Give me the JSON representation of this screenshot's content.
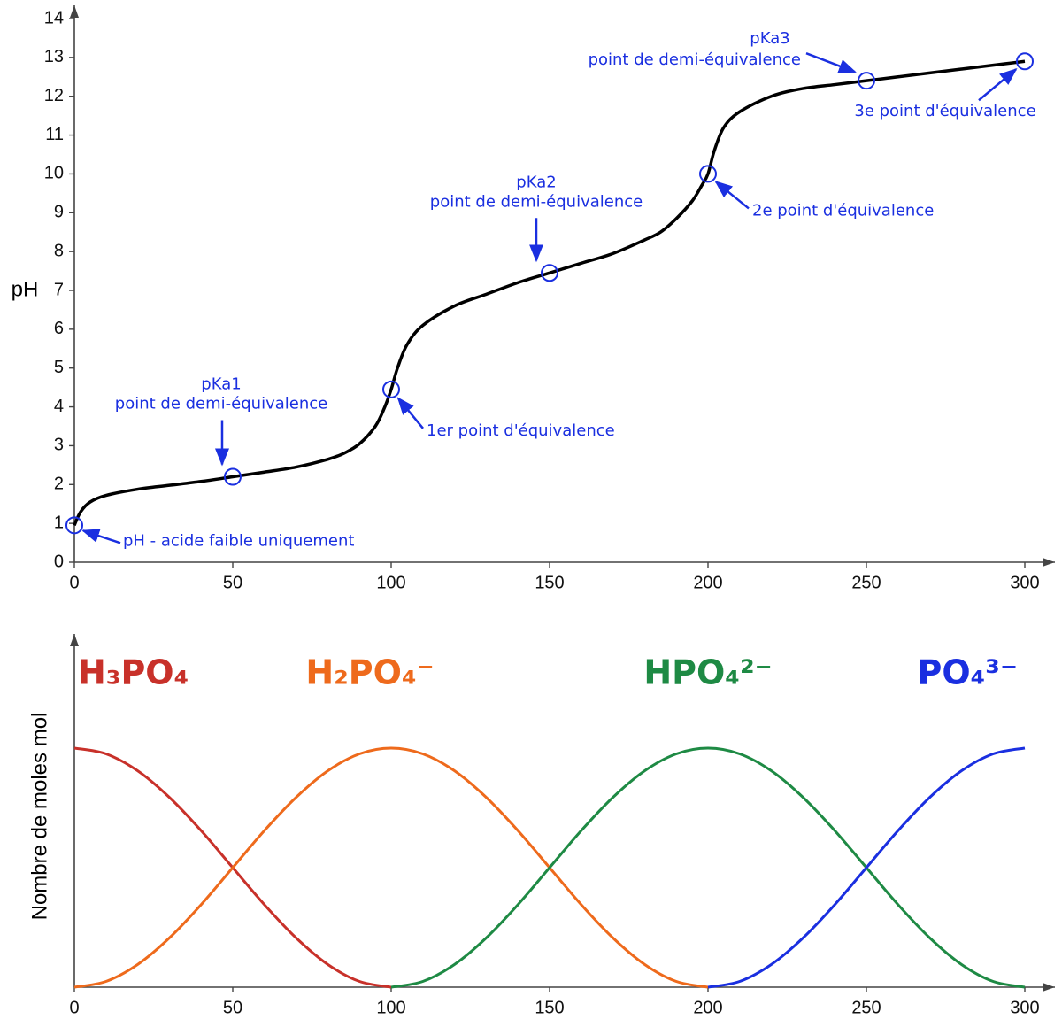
{
  "chart_data": [
    {
      "type": "line",
      "ylabel": "pH",
      "color": "#000000",
      "annotation_color": "#1a2fe0",
      "x": [
        0,
        2,
        5,
        10,
        20,
        30,
        40,
        50,
        60,
        70,
        80,
        85,
        90,
        95,
        98,
        100,
        102,
        105,
        110,
        120,
        130,
        140,
        150,
        160,
        170,
        180,
        185,
        190,
        195,
        198,
        200,
        202,
        205,
        210,
        220,
        230,
        240,
        250,
        260,
        270,
        280,
        290,
        300
      ],
      "values": [
        0.95,
        1.3,
        1.55,
        1.72,
        1.88,
        1.98,
        2.08,
        2.2,
        2.32,
        2.45,
        2.65,
        2.8,
        3.05,
        3.5,
        4.0,
        4.45,
        5.0,
        5.6,
        6.1,
        6.6,
        6.9,
        7.2,
        7.45,
        7.7,
        7.95,
        8.3,
        8.5,
        8.85,
        9.3,
        9.7,
        10.0,
        10.6,
        11.2,
        11.6,
        12.0,
        12.2,
        12.3,
        12.4,
        12.5,
        12.6,
        12.7,
        12.8,
        12.9
      ],
      "xlim": [
        0,
        300
      ],
      "ylim": [
        0,
        14
      ],
      "xticks": [
        0,
        50,
        100,
        150,
        200,
        250,
        300
      ],
      "yticks": [
        0,
        1,
        2,
        3,
        4,
        5,
        6,
        7,
        8,
        9,
        10,
        11,
        12,
        13,
        14
      ],
      "annotations": [
        {
          "text": [
            "pH - acide faible uniquement"
          ],
          "x": 0,
          "y": 0.95
        },
        {
          "text": [
            "pKa1",
            "point de demi-équivalence"
          ],
          "x": 50,
          "y": 2.2
        },
        {
          "text": [
            "1er point d'équivalence"
          ],
          "x": 100,
          "y": 4.45
        },
        {
          "text": [
            "pKa2",
            "point de demi-équivalence"
          ],
          "x": 150,
          "y": 7.45
        },
        {
          "text": [
            "2e point d'équivalence"
          ],
          "x": 200,
          "y": 10.0
        },
        {
          "text": [
            "pKa3",
            "point de demi-équivalence"
          ],
          "x": 250,
          "y": 12.4
        },
        {
          "text": [
            "3e point d'équivalence"
          ],
          "x": 300,
          "y": 12.9
        }
      ]
    },
    {
      "type": "line",
      "ylabel": "Nombre de moles mol",
      "x": [
        0,
        10,
        20,
        30,
        40,
        50,
        60,
        70,
        80,
        90,
        100,
        110,
        120,
        130,
        140,
        150,
        160,
        170,
        180,
        190,
        200,
        210,
        220,
        230,
        240,
        250,
        260,
        270,
        280,
        290,
        300
      ],
      "xlim": [
        0,
        300
      ],
      "ylim": [
        0,
        1.2
      ],
      "xticks": [
        0,
        50,
        100,
        150,
        200,
        250,
        300
      ],
      "series": [
        {
          "name": "H₃PO₄",
          "color": "#c8312a",
          "values": [
            1,
            0.976,
            0.905,
            0.794,
            0.655,
            0.5,
            0.345,
            0.206,
            0.095,
            0.024,
            0,
            null,
            null,
            null,
            null,
            null,
            null,
            null,
            null,
            null,
            null,
            null,
            null,
            null,
            null,
            null,
            null,
            null,
            null,
            null,
            null
          ]
        },
        {
          "name": "H₂PO₄⁻",
          "color": "#ee6a1c",
          "values": [
            0,
            0.024,
            0.095,
            0.206,
            0.345,
            0.5,
            0.655,
            0.794,
            0.905,
            0.976,
            1,
            0.976,
            0.905,
            0.794,
            0.655,
            0.5,
            0.345,
            0.206,
            0.095,
            0.024,
            0,
            null,
            null,
            null,
            null,
            null,
            null,
            null,
            null,
            null,
            null
          ]
        },
        {
          "name": "HPO₄²⁻",
          "color": "#1e8a44",
          "values": [
            null,
            null,
            null,
            null,
            null,
            null,
            null,
            null,
            null,
            null,
            0,
            0.024,
            0.095,
            0.206,
            0.345,
            0.5,
            0.655,
            0.794,
            0.905,
            0.976,
            1,
            0.976,
            0.905,
            0.794,
            0.655,
            0.5,
            0.345,
            0.206,
            0.095,
            0.024,
            0
          ]
        },
        {
          "name": "PO₄³⁻",
          "color": "#1a2fe0",
          "values": [
            null,
            null,
            null,
            null,
            null,
            null,
            null,
            null,
            null,
            null,
            null,
            null,
            null,
            null,
            null,
            null,
            null,
            null,
            null,
            null,
            0,
            0.024,
            0.095,
            0.206,
            0.345,
            0.5,
            0.655,
            0.794,
            0.905,
            0.976,
            1
          ]
        }
      ]
    }
  ]
}
